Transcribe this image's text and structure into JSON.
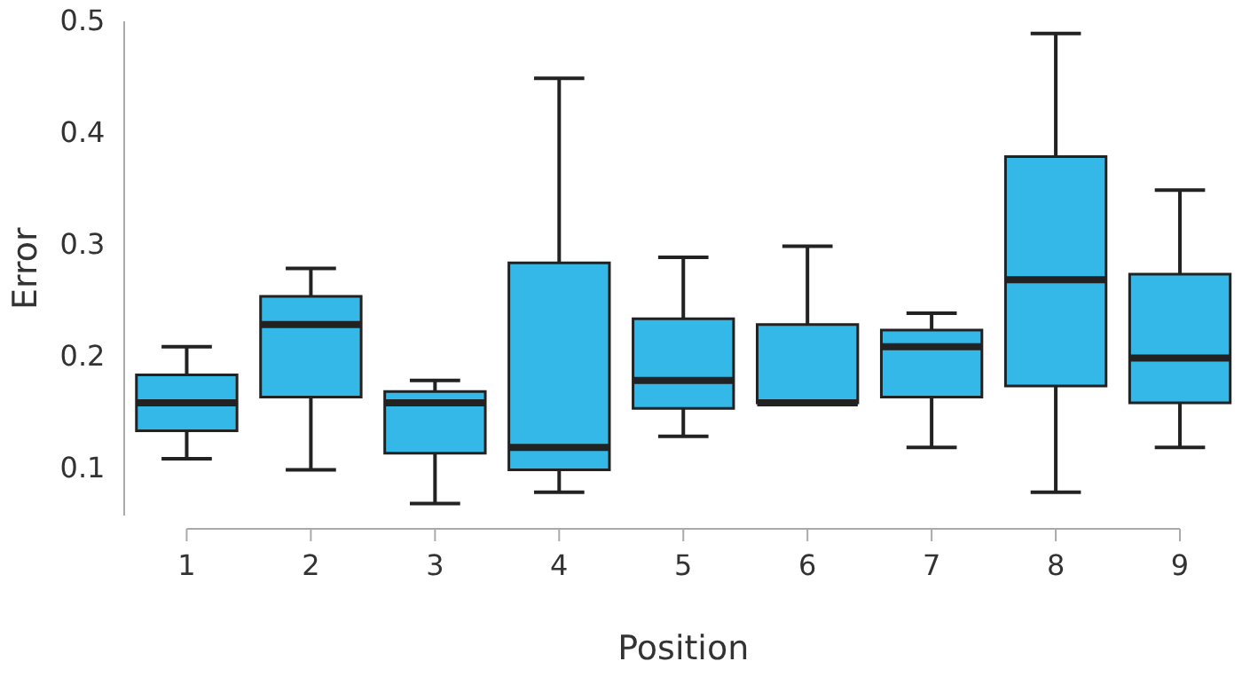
{
  "chart_data": {
    "type": "box",
    "xlabel": "Position",
    "ylabel": "Error",
    "categories": [
      "1",
      "2",
      "3",
      "4",
      "5",
      "6",
      "7",
      "8",
      "9"
    ],
    "color": "#33b8e8",
    "ylim": [
      0.06,
      0.5
    ],
    "yticks": [
      0.1,
      0.2,
      0.3,
      0.4,
      0.5
    ],
    "boxes": [
      {
        "low": 0.11,
        "q1": 0.135,
        "median": 0.16,
        "q3": 0.185,
        "high": 0.21
      },
      {
        "low": 0.1,
        "q1": 0.165,
        "median": 0.23,
        "q3": 0.255,
        "high": 0.28
      },
      {
        "low": 0.07,
        "q1": 0.115,
        "median": 0.16,
        "q3": 0.17,
        "high": 0.18
      },
      {
        "low": 0.08,
        "q1": 0.1,
        "median": 0.12,
        "q3": 0.285,
        "high": 0.45
      },
      {
        "low": 0.13,
        "q1": 0.155,
        "median": 0.18,
        "q3": 0.235,
        "high": 0.29
      },
      {
        "low": 0.16,
        "q1": 0.16,
        "median": 0.16,
        "q3": 0.23,
        "high": 0.3
      },
      {
        "low": 0.12,
        "q1": 0.165,
        "median": 0.21,
        "q3": 0.225,
        "high": 0.24
      },
      {
        "low": 0.08,
        "q1": 0.175,
        "median": 0.27,
        "q3": 0.38,
        "high": 0.49
      },
      {
        "low": 0.12,
        "q1": 0.16,
        "median": 0.2,
        "q3": 0.275,
        "high": 0.35
      }
    ]
  }
}
